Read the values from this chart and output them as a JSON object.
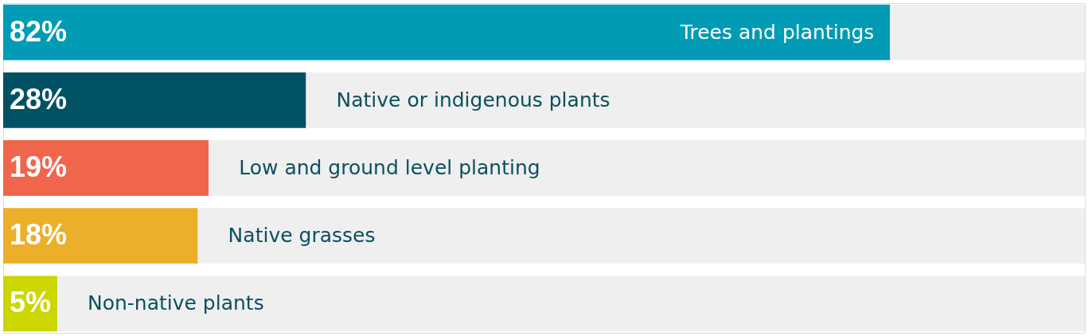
{
  "chart_data": {
    "type": "bar",
    "orientation": "horizontal",
    "stacked": true,
    "categories": [
      "Trees and plantings",
      "Native or indigenous plants",
      "Low and ground level planting",
      "Native grasses",
      "Non-native plants"
    ],
    "series": [
      {
        "colors": [
          "#019bb5",
          "#005163",
          "#ef664d",
          "#ecaf2a",
          "#ccd600"
        ],
        "values": [
          82,
          28,
          19,
          18,
          5
        ],
        "value_labels": [
          "82%",
          "28%",
          "19%",
          "18%",
          "5%"
        ]
      },
      {
        "color": "#efefef",
        "values": [
          18,
          72,
          81,
          82,
          95
        ]
      }
    ],
    "xlim": [
      0,
      100
    ],
    "tick_labels": false
  }
}
